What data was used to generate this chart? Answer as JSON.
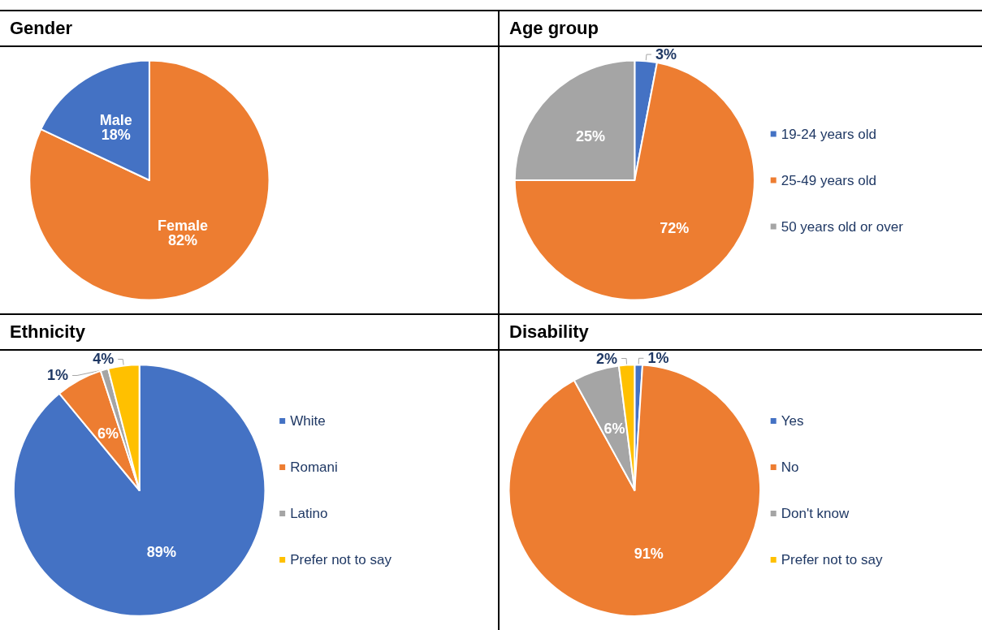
{
  "chart_data": [
    {
      "type": "pie",
      "title": "Gender",
      "categories": [
        "Female",
        "Male"
      ],
      "values": [
        82,
        18
      ],
      "value_labels": [
        "82%",
        "18%"
      ],
      "colors": [
        "#ed7d31",
        "#4472c4"
      ],
      "legend": false
    },
    {
      "type": "pie",
      "title": "Age group",
      "categories": [
        "19-24 years old",
        "25-49 years old",
        "50 years old or over"
      ],
      "values": [
        3,
        72,
        25
      ],
      "value_labels": [
        "3%",
        "72%",
        "25%"
      ],
      "colors": [
        "#4472c4",
        "#ed7d31",
        "#a5a5a5"
      ],
      "legend": "right"
    },
    {
      "type": "pie",
      "title": "Ethnicity",
      "categories": [
        "White",
        "Romani",
        "Latino",
        "Prefer not to say"
      ],
      "values": [
        89,
        6,
        1,
        4
      ],
      "value_labels": [
        "89%",
        "6%",
        "1%",
        "4%"
      ],
      "colors": [
        "#4472c4",
        "#ed7d31",
        "#a5a5a5",
        "#ffc000"
      ],
      "legend": "right"
    },
    {
      "type": "pie",
      "title": "Disability",
      "categories": [
        "Yes",
        "No",
        "Don't know",
        "Prefer not to say"
      ],
      "values": [
        1,
        91,
        6,
        2
      ],
      "value_labels": [
        "1%",
        "91%",
        "6%",
        "2%"
      ],
      "colors": [
        "#4472c4",
        "#ed7d31",
        "#a5a5a5",
        "#ffc000"
      ],
      "legend": "right"
    }
  ]
}
